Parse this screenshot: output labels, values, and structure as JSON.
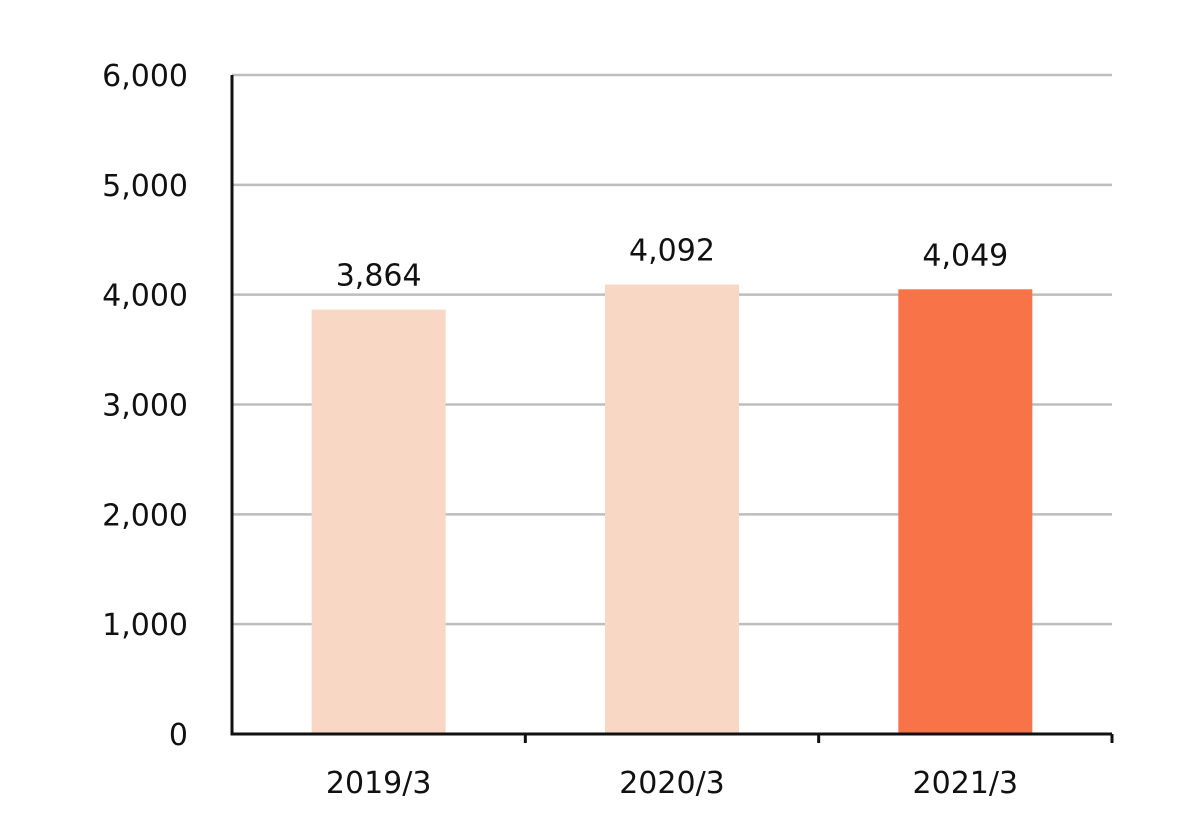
{
  "chart_data": {
    "type": "bar",
    "categories": [
      "2019/3",
      "2020/3",
      "2021/3"
    ],
    "values": [
      3864,
      4092,
      4049
    ],
    "value_labels": [
      "3,864",
      "4,092",
      "4,049"
    ],
    "yticks": [
      0,
      1000,
      2000,
      3000,
      4000,
      5000,
      6000
    ],
    "ytick_labels": [
      "0",
      "1,000",
      "2,000",
      "3,000",
      "4,000",
      "5,000",
      "6,000"
    ],
    "ylim": [
      0,
      6000
    ],
    "grid": true,
    "colors": {
      "bar": "#f8d8c4",
      "bar_highlight": "#f97348",
      "grid": "#bdbdbd",
      "axis": "#111111"
    },
    "highlight_index": 2
  }
}
